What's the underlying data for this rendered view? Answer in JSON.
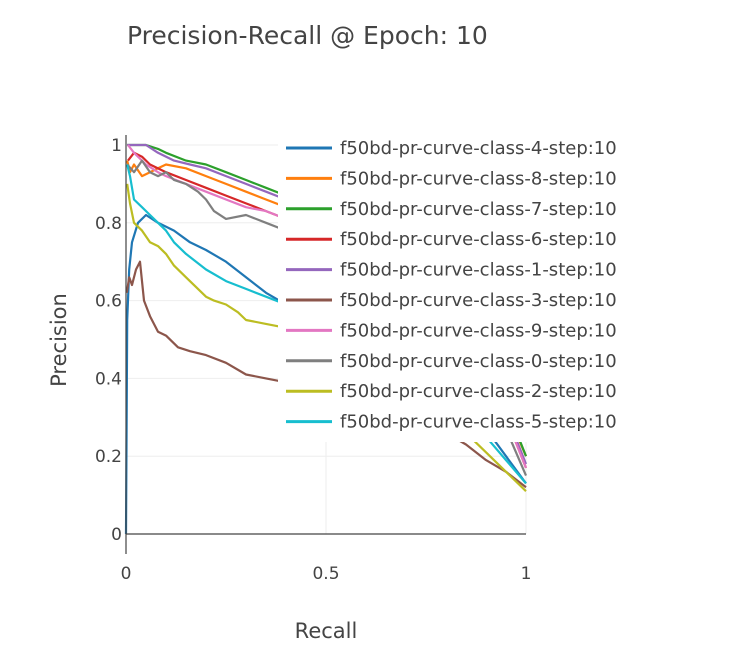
{
  "chart_data": {
    "type": "line",
    "title": "Precision-Recall @ Epoch: 10",
    "xlabel": "Recall",
    "ylabel": "Precision",
    "xlim": [
      0,
      1
    ],
    "ylim": [
      0,
      1
    ],
    "x_ticks": [
      {
        "value": 0,
        "label": "0"
      },
      {
        "value": 0.5,
        "label": "0.5"
      },
      {
        "value": 1,
        "label": "1"
      }
    ],
    "y_ticks": [
      {
        "value": 0,
        "label": "0"
      },
      {
        "value": 0.2,
        "label": "0.2"
      },
      {
        "value": 0.4,
        "label": "0.4"
      },
      {
        "value": 0.6,
        "label": "0.6"
      },
      {
        "value": 0.8,
        "label": "0.8"
      },
      {
        "value": 1,
        "label": "1"
      }
    ],
    "grid": true,
    "legend_position": "top-right",
    "series": [
      {
        "name": "f50bd-pr-curve-class-4-step:10",
        "color": "#1f77b4",
        "x": [
          0,
          0.003,
          0.008,
          0.015,
          0.03,
          0.05,
          0.08,
          0.12,
          0.16,
          0.2,
          0.25,
          0.3,
          0.35,
          0.4,
          0.45,
          0.5,
          0.6,
          0.7,
          0.8,
          0.85,
          0.9,
          0.95,
          1.0
        ],
        "y": [
          0,
          0.55,
          0.68,
          0.75,
          0.8,
          0.82,
          0.8,
          0.78,
          0.75,
          0.73,
          0.7,
          0.66,
          0.62,
          0.59,
          0.57,
          0.54,
          0.49,
          0.44,
          0.38,
          0.33,
          0.27,
          0.2,
          0.13
        ]
      },
      {
        "name": "f50bd-pr-curve-class-8-step:10",
        "color": "#ff7f0e",
        "x": [
          0.003,
          0.01,
          0.02,
          0.04,
          0.06,
          0.08,
          0.1,
          0.15,
          0.2,
          0.25,
          0.3,
          0.35,
          0.4,
          0.45,
          0.5,
          0.6,
          0.7,
          0.8,
          0.85,
          0.9,
          0.95,
          1.0
        ],
        "y": [
          0.96,
          0.93,
          0.95,
          0.92,
          0.93,
          0.94,
          0.95,
          0.94,
          0.92,
          0.9,
          0.88,
          0.86,
          0.84,
          0.82,
          0.8,
          0.75,
          0.69,
          0.6,
          0.52,
          0.43,
          0.32,
          0.2
        ]
      },
      {
        "name": "f50bd-pr-curve-class-7-step:10",
        "color": "#2ca02c",
        "x": [
          0.003,
          0.02,
          0.05,
          0.08,
          0.1,
          0.15,
          0.2,
          0.25,
          0.3,
          0.35,
          0.4,
          0.45,
          0.5,
          0.6,
          0.7,
          0.8,
          0.85,
          0.9,
          0.95,
          1.0
        ],
        "y": [
          1.0,
          1.0,
          1.0,
          0.99,
          0.98,
          0.96,
          0.95,
          0.93,
          0.91,
          0.89,
          0.87,
          0.85,
          0.83,
          0.78,
          0.71,
          0.62,
          0.54,
          0.45,
          0.33,
          0.2
        ]
      },
      {
        "name": "f50bd-pr-curve-class-6-step:10",
        "color": "#d62728",
        "x": [
          0.005,
          0.02,
          0.04,
          0.06,
          0.1,
          0.15,
          0.2,
          0.25,
          0.3,
          0.35,
          0.4,
          0.45,
          0.5,
          0.6,
          0.7,
          0.8,
          0.85,
          0.9,
          0.95,
          1.0
        ],
        "y": [
          0.96,
          0.98,
          0.97,
          0.95,
          0.93,
          0.91,
          0.89,
          0.87,
          0.85,
          0.83,
          0.81,
          0.79,
          0.77,
          0.72,
          0.66,
          0.57,
          0.5,
          0.41,
          0.3,
          0.17
        ]
      },
      {
        "name": "f50bd-pr-curve-class-1-step:10",
        "color": "#9467bd",
        "x": [
          0.003,
          0.02,
          0.05,
          0.08,
          0.12,
          0.16,
          0.2,
          0.25,
          0.3,
          0.35,
          0.4,
          0.45,
          0.5,
          0.6,
          0.7,
          0.8,
          0.85,
          0.9,
          0.95,
          1.0
        ],
        "y": [
          1.0,
          1.0,
          1.0,
          0.98,
          0.96,
          0.95,
          0.94,
          0.92,
          0.9,
          0.88,
          0.86,
          0.84,
          0.81,
          0.76,
          0.69,
          0.6,
          0.52,
          0.43,
          0.31,
          0.18
        ]
      },
      {
        "name": "f50bd-pr-curve-class-3-step:10",
        "color": "#8c564b",
        "x": [
          0.002,
          0.008,
          0.015,
          0.025,
          0.035,
          0.045,
          0.06,
          0.08,
          0.1,
          0.13,
          0.16,
          0.2,
          0.25,
          0.3,
          0.35,
          0.4,
          0.5,
          0.6,
          0.7,
          0.8,
          0.85,
          0.9,
          0.95,
          1.0
        ],
        "y": [
          0.62,
          0.66,
          0.64,
          0.68,
          0.7,
          0.6,
          0.56,
          0.52,
          0.51,
          0.48,
          0.47,
          0.46,
          0.44,
          0.41,
          0.4,
          0.39,
          0.37,
          0.34,
          0.3,
          0.26,
          0.23,
          0.19,
          0.16,
          0.12
        ]
      },
      {
        "name": "f50bd-pr-curve-class-9-step:10",
        "color": "#e377c2",
        "x": [
          0.005,
          0.02,
          0.05,
          0.08,
          0.1,
          0.15,
          0.2,
          0.25,
          0.3,
          0.35,
          0.4,
          0.45,
          0.5,
          0.6,
          0.7,
          0.8,
          0.85,
          0.9,
          0.95,
          1.0
        ],
        "y": [
          1.0,
          0.98,
          0.95,
          0.93,
          0.92,
          0.9,
          0.88,
          0.86,
          0.84,
          0.83,
          0.81,
          0.79,
          0.77,
          0.72,
          0.65,
          0.57,
          0.5,
          0.41,
          0.3,
          0.17
        ]
      },
      {
        "name": "f50bd-pr-curve-class-0-step:10",
        "color": "#7f7f7f",
        "x": [
          0.003,
          0.02,
          0.04,
          0.06,
          0.08,
          0.1,
          0.12,
          0.15,
          0.18,
          0.2,
          0.22,
          0.25,
          0.3,
          0.35,
          0.4,
          0.45,
          0.5,
          0.6,
          0.7,
          0.8,
          0.85,
          0.9,
          0.95,
          1.0
        ],
        "y": [
          0.95,
          0.93,
          0.96,
          0.93,
          0.92,
          0.93,
          0.91,
          0.9,
          0.88,
          0.86,
          0.83,
          0.81,
          0.82,
          0.8,
          0.78,
          0.76,
          0.74,
          0.69,
          0.63,
          0.54,
          0.47,
          0.38,
          0.27,
          0.15
        ]
      },
      {
        "name": "f50bd-pr-curve-class-2-step:10",
        "color": "#bcbd22",
        "x": [
          0.003,
          0.01,
          0.02,
          0.04,
          0.06,
          0.08,
          0.1,
          0.12,
          0.15,
          0.18,
          0.2,
          0.22,
          0.25,
          0.28,
          0.3,
          0.35,
          0.4,
          0.5,
          0.6,
          0.7,
          0.8,
          0.85,
          0.9,
          0.95,
          1.0
        ],
        "y": [
          0.9,
          0.85,
          0.8,
          0.78,
          0.75,
          0.74,
          0.72,
          0.69,
          0.66,
          0.63,
          0.61,
          0.6,
          0.59,
          0.57,
          0.55,
          0.54,
          0.53,
          0.49,
          0.44,
          0.38,
          0.31,
          0.26,
          0.21,
          0.16,
          0.11
        ]
      },
      {
        "name": "f50bd-pr-curve-class-5-step:10",
        "color": "#17becf",
        "x": [
          0.003,
          0.01,
          0.02,
          0.04,
          0.06,
          0.08,
          0.1,
          0.12,
          0.15,
          0.2,
          0.25,
          0.3,
          0.35,
          0.4,
          0.45,
          0.5,
          0.6,
          0.7,
          0.8,
          0.85,
          0.9,
          0.95,
          1.0
        ],
        "y": [
          0.95,
          0.92,
          0.86,
          0.84,
          0.82,
          0.8,
          0.78,
          0.75,
          0.72,
          0.68,
          0.65,
          0.63,
          0.61,
          0.59,
          0.56,
          0.53,
          0.48,
          0.42,
          0.35,
          0.3,
          0.25,
          0.19,
          0.13
        ]
      }
    ]
  }
}
